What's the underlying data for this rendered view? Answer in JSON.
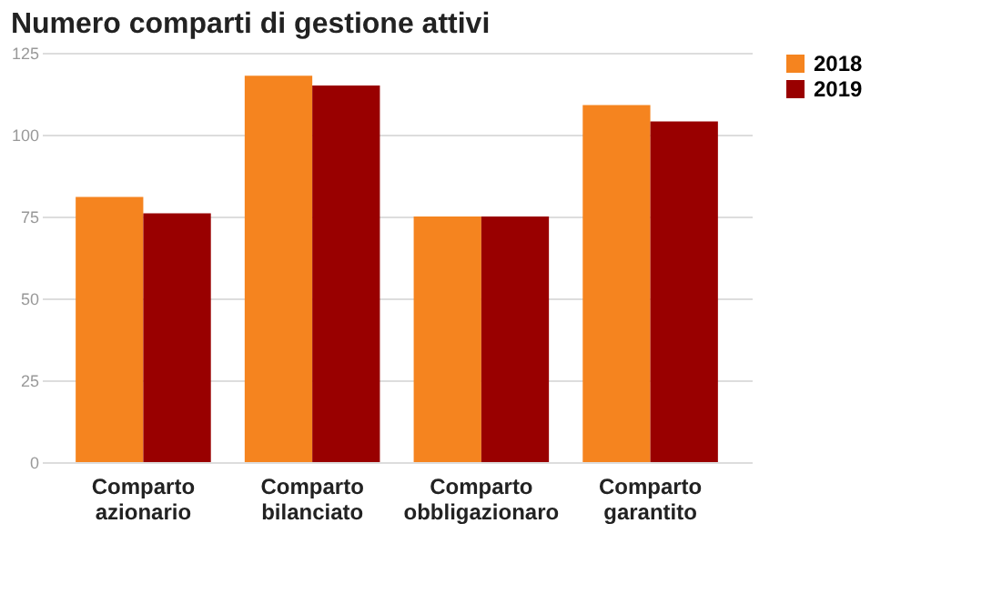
{
  "chart_data": {
    "type": "bar",
    "title": "Numero comparti di gestione attivi",
    "categories": [
      "Comparto azionario",
      "Comparto bilanciato",
      "Comparto obbligazionaro",
      "Comparto garantito"
    ],
    "series": [
      {
        "name": "2018",
        "color": "#f5841f",
        "values": [
          81,
          118,
          75,
          109
        ]
      },
      {
        "name": "2019",
        "color": "#990000",
        "values": [
          76,
          115,
          75,
          104
        ]
      }
    ],
    "ylim": [
      0,
      125
    ],
    "yticks": [
      0,
      25,
      50,
      75,
      100,
      125
    ],
    "grid": "y",
    "legend": "top right"
  }
}
